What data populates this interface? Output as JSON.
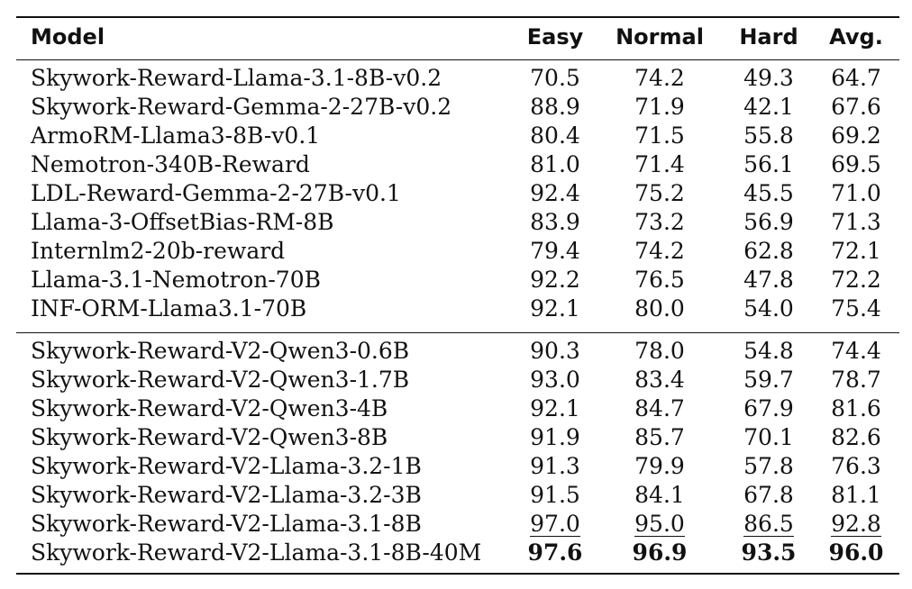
{
  "table": {
    "headers": {
      "model": "Model",
      "easy": "Easy",
      "normal": "Normal",
      "hard": "Hard",
      "avg": "Avg."
    },
    "group1": [
      {
        "model": "Skywork-Reward-Llama-3.1-8B-v0.2",
        "easy": "70.5",
        "normal": "74.2",
        "hard": "49.3",
        "avg": "64.7"
      },
      {
        "model": "Skywork-Reward-Gemma-2-27B-v0.2",
        "easy": "88.9",
        "normal": "71.9",
        "hard": "42.1",
        "avg": "67.6"
      },
      {
        "model": "ArmoRM-Llama3-8B-v0.1",
        "easy": "80.4",
        "normal": "71.5",
        "hard": "55.8",
        "avg": "69.2"
      },
      {
        "model": "Nemotron-340B-Reward",
        "easy": "81.0",
        "normal": "71.4",
        "hard": "56.1",
        "avg": "69.5"
      },
      {
        "model": "LDL-Reward-Gemma-2-27B-v0.1",
        "easy": "92.4",
        "normal": "75.2",
        "hard": "45.5",
        "avg": "71.0"
      },
      {
        "model": "Llama-3-OffsetBias-RM-8B",
        "easy": "83.9",
        "normal": "73.2",
        "hard": "56.9",
        "avg": "71.3"
      },
      {
        "model": "Internlm2-20b-reward",
        "easy": "79.4",
        "normal": "74.2",
        "hard": "62.8",
        "avg": "72.1"
      },
      {
        "model": "Llama-3.1-Nemotron-70B",
        "easy": "92.2",
        "normal": "76.5",
        "hard": "47.8",
        "avg": "72.2"
      },
      {
        "model": "INF-ORM-Llama3.1-70B",
        "easy": "92.1",
        "normal": "80.0",
        "hard": "54.0",
        "avg": "75.4"
      }
    ],
    "group2": [
      {
        "model": "Skywork-Reward-V2-Qwen3-0.6B",
        "easy": "90.3",
        "normal": "78.0",
        "hard": "54.8",
        "avg": "74.4"
      },
      {
        "model": "Skywork-Reward-V2-Qwen3-1.7B",
        "easy": "93.0",
        "normal": "83.4",
        "hard": "59.7",
        "avg": "78.7"
      },
      {
        "model": "Skywork-Reward-V2-Qwen3-4B",
        "easy": "92.1",
        "normal": "84.7",
        "hard": "67.9",
        "avg": "81.6"
      },
      {
        "model": "Skywork-Reward-V2-Qwen3-8B",
        "easy": "91.9",
        "normal": "85.7",
        "hard": "70.1",
        "avg": "82.6"
      },
      {
        "model": "Skywork-Reward-V2-Llama-3.2-1B",
        "easy": "91.3",
        "normal": "79.9",
        "hard": "57.8",
        "avg": "76.3"
      },
      {
        "model": "Skywork-Reward-V2-Llama-3.2-3B",
        "easy": "91.5",
        "normal": "84.1",
        "hard": "67.8",
        "avg": "81.1"
      },
      {
        "model": "Skywork-Reward-V2-Llama-3.1-8B",
        "easy": "97.0",
        "normal": "95.0",
        "hard": "86.5",
        "avg": "92.8"
      },
      {
        "model": "Skywork-Reward-V2-Llama-3.1-8B-40M",
        "easy": "97.6",
        "normal": "96.9",
        "hard": "93.5",
        "avg": "96.0"
      }
    ]
  }
}
